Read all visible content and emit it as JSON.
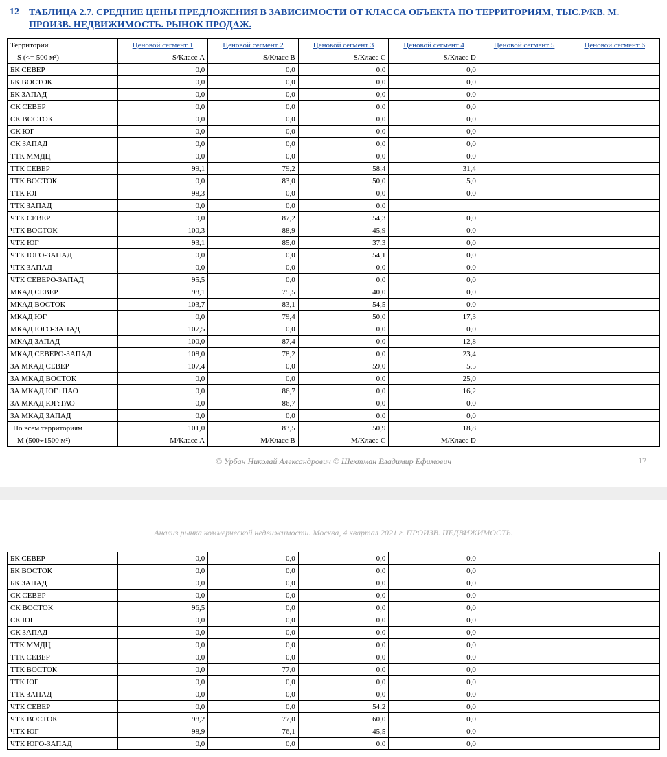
{
  "title_number": "12",
  "title_text": "ТАБЛИЦА 2.7. СРЕДНИЕ ЦЕНЫ ПРЕДЛОЖЕНИЯ В ЗАВИСИМОСТИ ОТ КЛАССА ОБЪЕКТА ПО ТЕРРИТОРИЯМ, ТЫС.Р/КВ. М. ПРОИЗВ. НЕДВИЖИМОСТЬ. РЫНОК ПРОДАЖ.",
  "headers": {
    "territory": "Территории",
    "seg1": "Ценовой сегмент 1",
    "seg2": "Ценовой сегмент 2",
    "seg3": "Ценовой сегмент 3",
    "seg4": "Ценовой сегмент 4",
    "seg5": "Ценовой сегмент 5",
    "seg6": "Ценовой сегмент 6"
  },
  "subheaders_s": {
    "territory": "   S (<= 500 м²)",
    "seg1": "S/Класс А",
    "seg2": "S/Класс В",
    "seg3": "S/Класс С",
    "seg4": "S/Класс D",
    "seg5": "",
    "seg6": ""
  },
  "rows_page1": [
    {
      "t": "БК СЕВЕР",
      "v": [
        "0,0",
        "0,0",
        "0,0",
        "0,0",
        "",
        ""
      ]
    },
    {
      "t": "БК ВОСТОК",
      "v": [
        "0,0",
        "0,0",
        "0,0",
        "0,0",
        "",
        ""
      ]
    },
    {
      "t": "БК ЗАПАД",
      "v": [
        "0,0",
        "0,0",
        "0,0",
        "0,0",
        "",
        ""
      ]
    },
    {
      "t": "СК СЕВЕР",
      "v": [
        "0,0",
        "0,0",
        "0,0",
        "0,0",
        "",
        ""
      ]
    },
    {
      "t": "СК ВОСТОК",
      "v": [
        "0,0",
        "0,0",
        "0,0",
        "0,0",
        "",
        ""
      ]
    },
    {
      "t": "СК ЮГ",
      "v": [
        "0,0",
        "0,0",
        "0,0",
        "0,0",
        "",
        ""
      ]
    },
    {
      "t": "СК ЗАПАД",
      "v": [
        "0,0",
        "0,0",
        "0,0",
        "0,0",
        "",
        ""
      ]
    },
    {
      "t": "ТТК ММДЦ",
      "v": [
        "0,0",
        "0,0",
        "0,0",
        "0,0",
        "",
        ""
      ]
    },
    {
      "t": "ТТК СЕВЕР",
      "v": [
        "99,1",
        "79,2",
        "58,4",
        "31,4",
        "",
        ""
      ]
    },
    {
      "t": "ТТК ВОСТОК",
      "v": [
        "0,0",
        "83,0",
        "50,0",
        "5,0",
        "",
        ""
      ]
    },
    {
      "t": "ТТК ЮГ",
      "v": [
        "98,3",
        "0,0",
        "0,0",
        "0,0",
        "",
        ""
      ]
    },
    {
      "t": "ТТК ЗАПАД",
      "v": [
        "0,0",
        "0,0",
        "0,0",
        "",
        "",
        ""
      ]
    },
    {
      "t": "ЧТК СЕВЕР",
      "v": [
        "0,0",
        "87,2",
        "54,3",
        "0,0",
        "",
        ""
      ]
    },
    {
      "t": "ЧТК ВОСТОК",
      "v": [
        "100,3",
        "88,9",
        "45,9",
        "0,0",
        "",
        ""
      ]
    },
    {
      "t": "ЧТК ЮГ",
      "v": [
        "93,1",
        "85,0",
        "37,3",
        "0,0",
        "",
        ""
      ]
    },
    {
      "t": "ЧТК ЮГО-ЗАПАД",
      "v": [
        "0,0",
        "0,0",
        "54,1",
        "0,0",
        "",
        ""
      ]
    },
    {
      "t": "ЧТК ЗАПАД",
      "v": [
        "0,0",
        "0,0",
        "0,0",
        "0,0",
        "",
        ""
      ]
    },
    {
      "t": "ЧТК СЕВЕРО-ЗАПАД",
      "v": [
        "95,5",
        "0,0",
        "0,0",
        "0,0",
        "",
        ""
      ]
    },
    {
      "t": "МКАД СЕВЕР",
      "v": [
        "98,1",
        "75,5",
        "40,0",
        "0,0",
        "",
        ""
      ]
    },
    {
      "t": "МКАД ВОСТОК",
      "v": [
        "103,7",
        "83,1",
        "54,5",
        "0,0",
        "",
        ""
      ]
    },
    {
      "t": "МКАД ЮГ",
      "v": [
        "0,0",
        "79,4",
        "50,0",
        "17,3",
        "",
        ""
      ]
    },
    {
      "t": "МКАД ЮГО-ЗАПАД",
      "v": [
        "107,5",
        "0,0",
        "0,0",
        "0,0",
        "",
        ""
      ]
    },
    {
      "t": "МКАД ЗАПАД",
      "v": [
        "100,0",
        "87,4",
        "0,0",
        "12,8",
        "",
        ""
      ]
    },
    {
      "t": "МКАД СЕВЕРО-ЗАПАД",
      "v": [
        "108,0",
        "78,2",
        "0,0",
        "23,4",
        "",
        ""
      ]
    },
    {
      "t": "ЗА МКАД СЕВЕР",
      "v": [
        "107,4",
        "0,0",
        "59,0",
        "5,5",
        "",
        ""
      ]
    },
    {
      "t": "ЗА МКАД ВОСТОК",
      "v": [
        "0,0",
        "0,0",
        "0,0",
        "25,0",
        "",
        ""
      ]
    },
    {
      "t": "ЗА МКАД ЮГ+НАО",
      "v": [
        "0,0",
        "86,7",
        "0,0",
        "16,2",
        "",
        ""
      ]
    },
    {
      "t": "ЗА МКАД ЮГ:ТАО",
      "v": [
        "0,0",
        "86,7",
        "0,0",
        "0,0",
        "",
        ""
      ]
    },
    {
      "t": "ЗА МКАД ЗАПАД",
      "v": [
        "0,0",
        "0,0",
        "0,0",
        "0,0",
        "",
        ""
      ]
    }
  ],
  "summary_row": {
    "t": "По всем территориям",
    "v": [
      "101,0",
      "83,5",
      "50,9",
      "18,8",
      "",
      ""
    ]
  },
  "subheaders_m": {
    "territory": "   M (500÷1500 м²)",
    "seg1": "M/Класс А",
    "seg2": "M/Класс В",
    "seg3": "M/Класс С",
    "seg4": "M/Класс D",
    "seg5": "",
    "seg6": ""
  },
  "footer_credits": "© Урбан Николай Александрович    © Шехтман Владимир Ефимович",
  "page_number": "17",
  "page2_header": "Анализ рынка коммерческой недвижимости.    Москва,  4 квартал 2021 г.    ПРОИЗВ. НЕДВИЖИМОСТЬ.",
  "rows_page2": [
    {
      "t": "БК СЕВЕР",
      "v": [
        "0,0",
        "0,0",
        "0,0",
        "0,0",
        "",
        ""
      ]
    },
    {
      "t": "БК ВОСТОК",
      "v": [
        "0,0",
        "0,0",
        "0,0",
        "0,0",
        "",
        ""
      ]
    },
    {
      "t": "БК ЗАПАД",
      "v": [
        "0,0",
        "0,0",
        "0,0",
        "0,0",
        "",
        ""
      ]
    },
    {
      "t": "СК СЕВЕР",
      "v": [
        "0,0",
        "0,0",
        "0,0",
        "0,0",
        "",
        ""
      ]
    },
    {
      "t": "СК ВОСТОК",
      "v": [
        "96,5",
        "0,0",
        "0,0",
        "0,0",
        "",
        ""
      ]
    },
    {
      "t": "СК ЮГ",
      "v": [
        "0,0",
        "0,0",
        "0,0",
        "0,0",
        "",
        ""
      ]
    },
    {
      "t": "СК ЗАПАД",
      "v": [
        "0,0",
        "0,0",
        "0,0",
        "0,0",
        "",
        ""
      ]
    },
    {
      "t": "ТТК ММДЦ",
      "v": [
        "0,0",
        "0,0",
        "0,0",
        "0,0",
        "",
        ""
      ]
    },
    {
      "t": "ТТК СЕВЕР",
      "v": [
        "0,0",
        "0,0",
        "0,0",
        "0,0",
        "",
        ""
      ]
    },
    {
      "t": "ТТК ВОСТОК",
      "v": [
        "0,0",
        "77,0",
        "0,0",
        "0,0",
        "",
        ""
      ]
    },
    {
      "t": "ТТК ЮГ",
      "v": [
        "0,0",
        "0,0",
        "0,0",
        "0,0",
        "",
        ""
      ]
    },
    {
      "t": "ТТК ЗАПАД",
      "v": [
        "0,0",
        "0,0",
        "0,0",
        "0,0",
        "",
        ""
      ]
    },
    {
      "t": "ЧТК СЕВЕР",
      "v": [
        "0,0",
        "0,0",
        "54,2",
        "0,0",
        "",
        ""
      ]
    },
    {
      "t": "ЧТК ВОСТОК",
      "v": [
        "98,2",
        "77,0",
        "60,0",
        "0,0",
        "",
        ""
      ]
    },
    {
      "t": "ЧТК ЮГ",
      "v": [
        "98,9",
        "76,1",
        "45,5",
        "0,0",
        "",
        ""
      ]
    },
    {
      "t": "ЧТК ЮГО-ЗАПАД",
      "v": [
        "0,0",
        "0,0",
        "0,0",
        "0,0",
        "",
        ""
      ]
    }
  ]
}
